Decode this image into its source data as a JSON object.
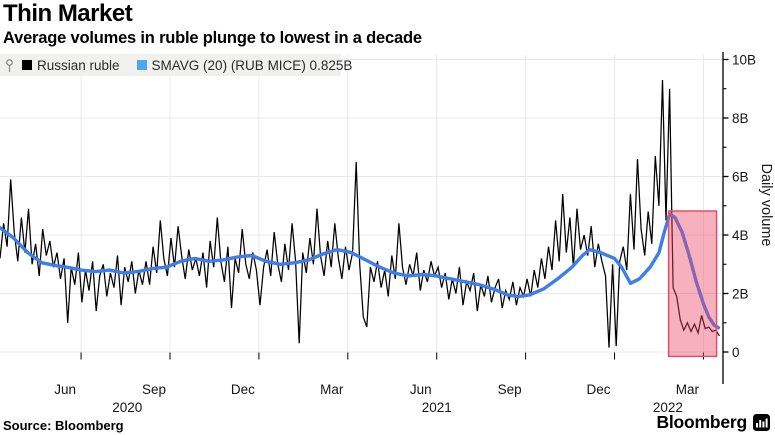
{
  "header": {
    "title": "Thin Market",
    "subtitle": "Average volumes in ruble plunge to lowest in a decade"
  },
  "legend": {
    "pin_icon": "pin-icon",
    "items": [
      {
        "label": "Russian ruble",
        "swatch_color": "#000000"
      },
      {
        "label": "SMAVG (20) (RUB MICE) 0.825B",
        "swatch_color": "#4fa5f0"
      }
    ]
  },
  "footer": {
    "source_label": "Source: Bloomberg",
    "brand_label": "Bloomberg",
    "brand_icon": "bloomberg-terminal-icon"
  },
  "chart_data": {
    "type": "line",
    "title": "Thin Market",
    "subtitle": "Average volumes in ruble plunge to lowest in a decade",
    "ylabel": "Daily volume",
    "y_unit": "billions (B)",
    "ylim": [
      0,
      10.3
    ],
    "grid": true,
    "grid_color": "#e8e8e8",
    "legend_position": "top-left",
    "y_major_ticks": [
      {
        "v": 0,
        "label": "0"
      },
      {
        "v": 2,
        "label": "2B"
      },
      {
        "v": 4,
        "label": "4B"
      },
      {
        "v": 6,
        "label": "6B"
      },
      {
        "v": 8,
        "label": "8B"
      },
      {
        "v": 10,
        "label": "10B"
      }
    ],
    "y_minor_ticks": [
      1,
      3,
      5,
      7,
      9
    ],
    "x_range_decimal_years": [
      2020.272,
      2022.305
    ],
    "x_quarter_gridlines": [
      2020.5,
      2020.75,
      2021.0,
      2021.25,
      2021.5,
      2021.75,
      2022.0,
      2022.25
    ],
    "x_month_ticks": [
      {
        "t": 2020.455,
        "label": "Jun"
      },
      {
        "t": 2020.705,
        "label": "Sep"
      },
      {
        "t": 2020.955,
        "label": "Dec"
      },
      {
        "t": 2021.205,
        "label": "Mar"
      },
      {
        "t": 2021.455,
        "label": "Jun"
      },
      {
        "t": 2021.705,
        "label": "Sep"
      },
      {
        "t": 2021.955,
        "label": "Dec"
      },
      {
        "t": 2022.205,
        "label": "Mar"
      }
    ],
    "x_year_labels": [
      {
        "t": 2020.63,
        "label": "2020"
      },
      {
        "t": 2021.5,
        "label": "2021"
      },
      {
        "t": 2022.15,
        "label": "2022"
      }
    ],
    "series": [
      {
        "name": "Russian ruble",
        "color": "#000000",
        "width": 1.25,
        "t_start": 2020.272,
        "t_end": 2022.295,
        "values_billions": [
          3.2,
          4.4,
          3.6,
          5.9,
          4.1,
          3.1,
          4.6,
          3.4,
          4.9,
          3.0,
          3.7,
          2.6,
          4.2,
          3.3,
          3.8,
          2.9,
          3.4,
          2.5,
          3.2,
          1.0,
          2.9,
          2.3,
          3.4,
          1.7,
          2.8,
          2.1,
          3.1,
          1.4,
          2.6,
          3.0,
          1.9,
          2.7,
          2.2,
          3.3,
          1.6,
          2.9,
          2.4,
          3.1,
          2.0,
          2.8,
          2.3,
          3.1,
          2.3,
          3.6,
          2.7,
          4.5,
          3.2,
          2.6,
          3.9,
          2.9,
          4.3,
          3.3,
          2.5,
          3.5,
          2.8,
          3.2,
          2.6,
          3.4,
          2.2,
          3.8,
          2.9,
          4.6,
          3.1,
          2.4,
          3.6,
          1.5,
          3.2,
          2.7,
          4.2,
          3.0,
          2.5,
          3.4,
          2.8,
          1.6,
          2.9,
          3.5,
          2.6,
          4.1,
          3.0,
          2.4,
          3.7,
          2.8,
          4.4,
          3.1,
          0.3,
          3.4,
          2.7,
          3.9,
          3.0,
          4.9,
          3.3,
          2.6,
          3.8,
          2.9,
          4.4,
          3.2,
          2.5,
          3.6,
          2.8,
          3.4,
          6.5,
          3.0,
          1.2,
          0.85,
          2.9,
          2.4,
          3.1,
          2.2,
          2.8,
          1.9,
          3.3,
          2.5,
          4.4,
          2.9,
          2.3,
          3.0,
          2.6,
          3.4,
          2.1,
          2.8,
          2.4,
          3.1,
          2.6,
          2.9,
          2.2,
          2.7,
          1.8,
          2.5,
          2.0,
          2.9,
          1.6,
          2.4,
          2.1,
          2.7,
          1.4,
          2.3,
          1.9,
          2.6,
          1.7,
          2.2,
          2.5,
          1.5,
          2.1,
          1.8,
          2.4,
          1.6,
          2.2,
          1.9,
          2.5,
          1.9,
          2.8,
          2.2,
          3.2,
          2.5,
          3.6,
          2.8,
          4.5,
          3.1,
          5.4,
          3.4,
          4.6,
          2.9,
          4.9,
          3.5,
          4.0,
          3.3,
          4.3,
          2.9,
          3.7,
          3.1,
          2.6,
          0.15,
          3.0,
          0.2,
          3.1,
          3.6,
          2.8,
          5.4,
          3.5,
          6.6,
          4.2,
          3.3,
          4.8,
          3.7,
          6.7,
          5.0,
          9.3,
          4.5,
          9.0,
          2.2,
          1.9,
          1.1,
          0.75,
          1.0,
          0.7,
          0.95,
          0.65,
          1.25,
          0.8,
          0.85,
          0.7,
          0.75,
          0.55
        ]
      },
      {
        "name": "SMAVG (20) (RUB MICE)",
        "last_value_billions": 0.825,
        "color": "#3f7ee8",
        "width": 3.4,
        "points": [
          [
            2020.272,
            4.25
          ],
          [
            2020.31,
            3.9
          ],
          [
            2020.35,
            3.4
          ],
          [
            2020.39,
            3.05
          ],
          [
            2020.43,
            2.95
          ],
          [
            2020.46,
            2.9
          ],
          [
            2020.5,
            2.8
          ],
          [
            2020.54,
            2.75
          ],
          [
            2020.58,
            2.8
          ],
          [
            2020.62,
            2.7
          ],
          [
            2020.66,
            2.75
          ],
          [
            2020.7,
            2.85
          ],
          [
            2020.74,
            2.9
          ],
          [
            2020.78,
            3.1
          ],
          [
            2020.82,
            3.2
          ],
          [
            2020.86,
            3.1
          ],
          [
            2020.9,
            3.15
          ],
          [
            2020.94,
            3.25
          ],
          [
            2020.98,
            3.3
          ],
          [
            2021.02,
            3.1
          ],
          [
            2021.06,
            3.0
          ],
          [
            2021.1,
            3.05
          ],
          [
            2021.14,
            3.15
          ],
          [
            2021.18,
            3.35
          ],
          [
            2021.22,
            3.5
          ],
          [
            2021.26,
            3.4
          ],
          [
            2021.3,
            3.15
          ],
          [
            2021.34,
            2.9
          ],
          [
            2021.38,
            2.7
          ],
          [
            2021.42,
            2.6
          ],
          [
            2021.46,
            2.65
          ],
          [
            2021.5,
            2.6
          ],
          [
            2021.54,
            2.5
          ],
          [
            2021.58,
            2.4
          ],
          [
            2021.62,
            2.3
          ],
          [
            2021.66,
            2.15
          ],
          [
            2021.7,
            1.95
          ],
          [
            2021.73,
            1.9
          ],
          [
            2021.76,
            1.95
          ],
          [
            2021.8,
            2.15
          ],
          [
            2021.84,
            2.5
          ],
          [
            2021.88,
            2.9
          ],
          [
            2021.91,
            3.3
          ],
          [
            2021.93,
            3.5
          ],
          [
            2021.96,
            3.4
          ],
          [
            2022.0,
            3.2
          ],
          [
            2022.02,
            2.9
          ],
          [
            2022.045,
            2.35
          ],
          [
            2022.07,
            2.5
          ],
          [
            2022.1,
            2.9
          ],
          [
            2022.125,
            3.4
          ],
          [
            2022.14,
            4.1
          ],
          [
            2022.155,
            4.72
          ],
          [
            2022.17,
            4.6
          ],
          [
            2022.19,
            4.1
          ],
          [
            2022.21,
            3.3
          ],
          [
            2022.23,
            2.4
          ],
          [
            2022.25,
            1.65
          ],
          [
            2022.265,
            1.2
          ],
          [
            2022.28,
            0.92
          ],
          [
            2022.292,
            0.83
          ]
        ]
      }
    ],
    "highlight_region": {
      "t_start": 2022.152,
      "t_end": 2022.287,
      "v_bottom": -0.15,
      "v_top": 4.82,
      "fill": "rgba(235,70,100,0.42)",
      "border_color": "#dd5168"
    }
  }
}
